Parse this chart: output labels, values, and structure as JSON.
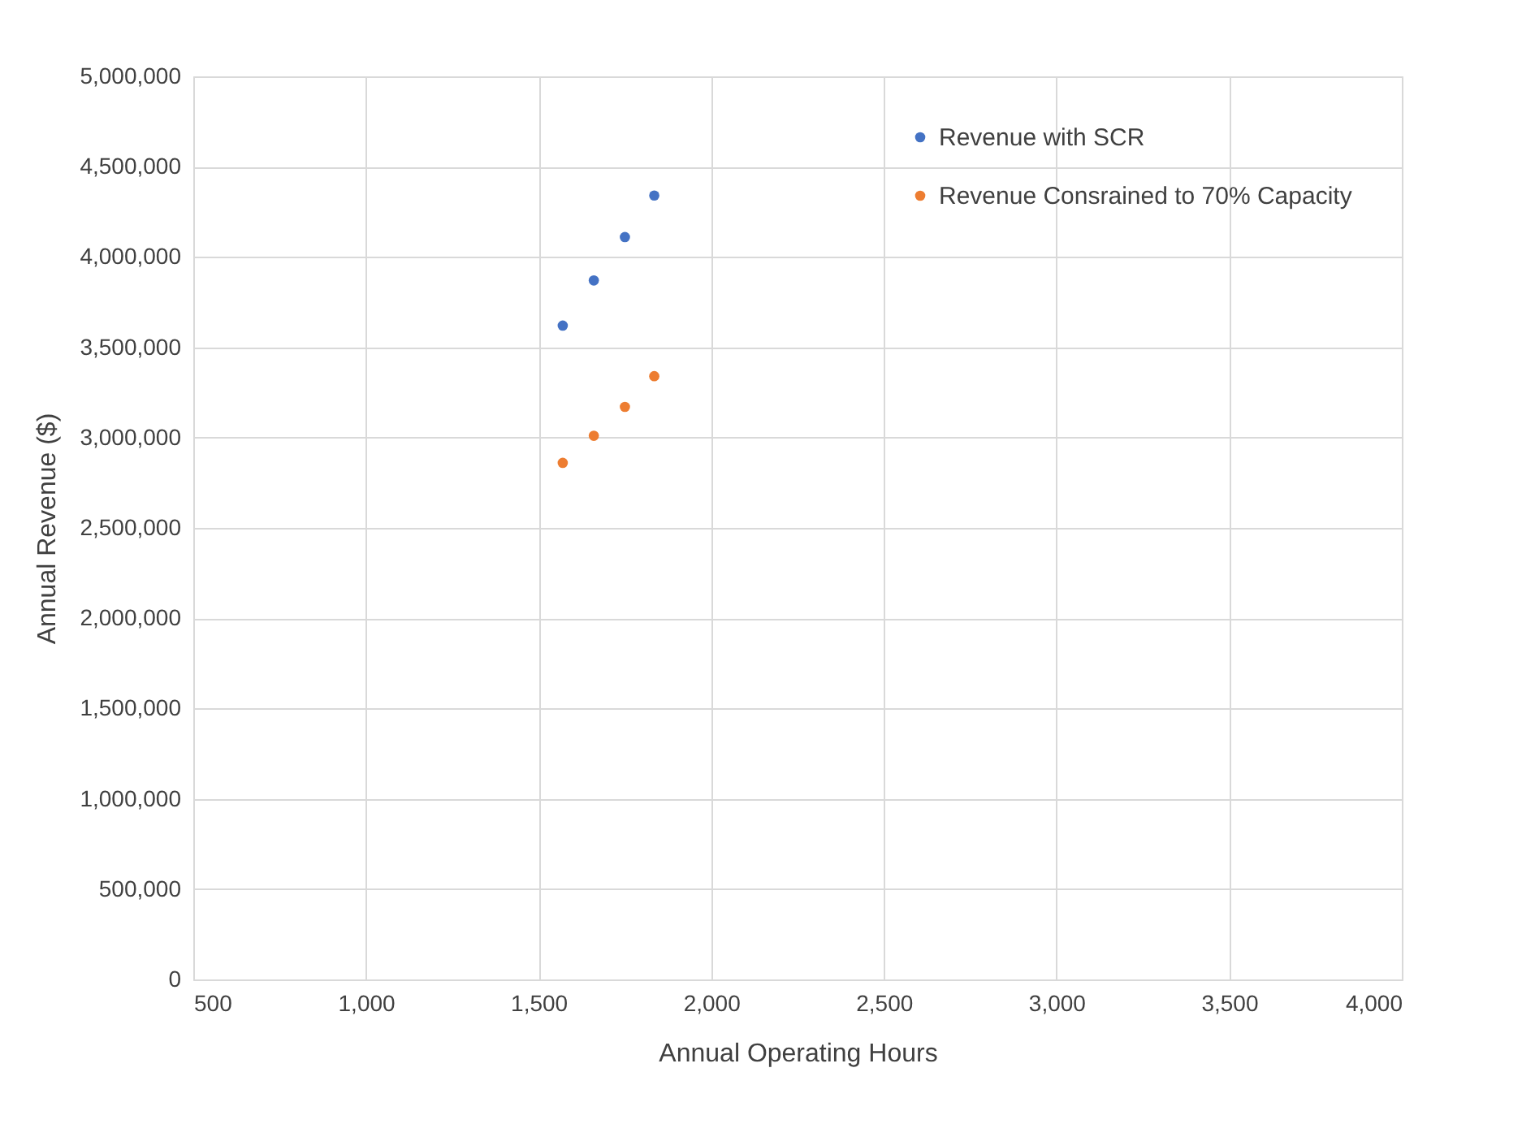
{
  "chart_data": {
    "type": "scatter",
    "xlabel": "Annual Operating Hours",
    "ylabel": "Annual Revenue ($)",
    "series": [
      {
        "name": "Revenue with SCR",
        "color": "#4472c4",
        "x": [
          1570,
          1660,
          1750,
          1835
        ],
        "values": [
          3620000,
          3870000,
          4110000,
          4340000
        ]
      },
      {
        "name": "Revenue Consrained to 70% Capacity",
        "color": "#ed7d31",
        "x": [
          1570,
          1660,
          1750,
          1835
        ],
        "values": [
          2860000,
          3010000,
          3170000,
          3340000
        ]
      }
    ],
    "xlim": [
      500,
      4000
    ],
    "xticks": [
      {
        "value": 500,
        "label": "500"
      },
      {
        "value": 1000,
        "label": "1,000"
      },
      {
        "value": 1500,
        "label": "1,500"
      },
      {
        "value": 2000,
        "label": "2,000"
      },
      {
        "value": 2500,
        "label": "2,500"
      },
      {
        "value": 3000,
        "label": "3,000"
      },
      {
        "value": 3500,
        "label": "3,500"
      },
      {
        "value": 4000,
        "label": "4,000"
      }
    ],
    "ylim": [
      0,
      5000000
    ],
    "yticks": [
      0,
      {
        "value": 500000,
        "label": "500,000"
      },
      {
        "value": 1000000,
        "label": "1,000,000"
      },
      {
        "value": 1500000,
        "label": "1,500,000"
      },
      {
        "value": 2000000,
        "label": "2,000,000"
      },
      {
        "value": 2500000,
        "label": "2,500,000"
      },
      {
        "value": 3000000,
        "label": "3,000,000"
      },
      {
        "value": 3500000,
        "label": "3,500,000"
      },
      {
        "value": 4000000,
        "label": "4,000,000"
      },
      {
        "value": 4500000,
        "label": "4,500,000"
      },
      {
        "value": 5000000,
        "label": "5,000,000"
      }
    ],
    "grid": true,
    "legend": "top right",
    "marker": "circle"
  }
}
